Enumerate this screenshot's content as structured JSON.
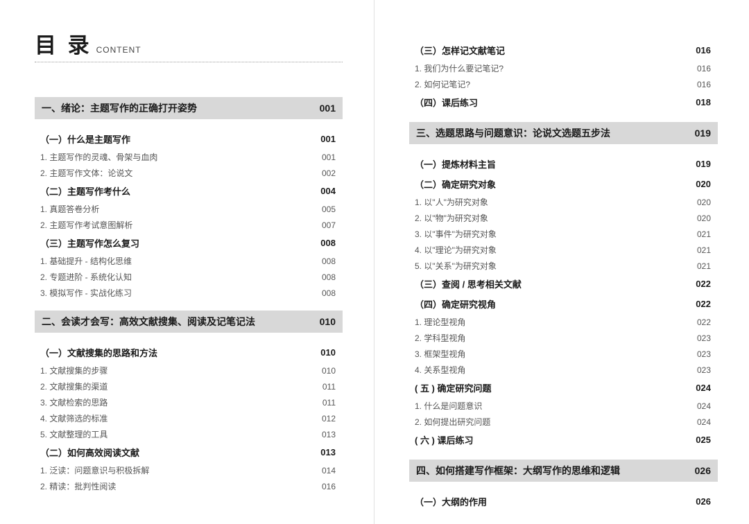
{
  "header": {
    "cn": "目 录",
    "en": "CONTENT"
  },
  "colors": {
    "chapter_bg": "#d8d8d8",
    "text_main": "#1a1a1a",
    "text_sub": "#555555",
    "divider": "#e0e0e0"
  },
  "left": {
    "ch1": {
      "title": "一、绪论：主题写作的正确打开姿势",
      "page": "001"
    },
    "s1_1": {
      "title": "（一）什么是主题写作",
      "page": "001"
    },
    "i1_1_1": {
      "title": "1. 主题写作的灵魂、骨架与血肉",
      "page": "001"
    },
    "i1_1_2": {
      "title": "2. 主题写作文体：论说文",
      "page": "002"
    },
    "s1_2": {
      "title": "（二）主题写作考什么",
      "page": "004"
    },
    "i1_2_1": {
      "title": "1. 真题答卷分析",
      "page": "005"
    },
    "i1_2_2": {
      "title": "2. 主题写作考试意图解析",
      "page": "007"
    },
    "s1_3": {
      "title": "（三）主题写作怎么复习",
      "page": "008"
    },
    "i1_3_1": {
      "title": "1. 基础提升 - 结构化思维",
      "page": "008"
    },
    "i1_3_2": {
      "title": "2. 专题进阶 - 系统化认知",
      "page": "008"
    },
    "i1_3_3": {
      "title": "3. 模拟写作 - 实战化练习",
      "page": "008"
    },
    "ch2": {
      "title": "二、会读才会写：高效文献搜集、阅读及记笔记法",
      "page": "010"
    },
    "s2_1": {
      "title": "（一）文献搜集的思路和方法",
      "page": "010"
    },
    "i2_1_1": {
      "title": "1. 文献搜集的步骤",
      "page": "010"
    },
    "i2_1_2": {
      "title": "2. 文献搜集的渠道",
      "page": "011"
    },
    "i2_1_3": {
      "title": "3. 文献检索的思路",
      "page": "011"
    },
    "i2_1_4": {
      "title": "4. 文献筛选的标准",
      "page": "012"
    },
    "i2_1_5": {
      "title": "5. 文献整理的工具",
      "page": "013"
    },
    "s2_2": {
      "title": "（二）如何高效阅读文献",
      "page": "013"
    },
    "i2_2_1": {
      "title": "1. 泛读：问题意识与积极拆解",
      "page": "014"
    },
    "i2_2_2": {
      "title": "2. 精读：批判性阅读",
      "page": "016"
    }
  },
  "right": {
    "s2_3": {
      "title": "（三）怎样记文献笔记",
      "page": "016"
    },
    "i2_3_1": {
      "title": "1. 我们为什么要记笔记?",
      "page": "016"
    },
    "i2_3_2": {
      "title": "2. 如何记笔记?",
      "page": "016"
    },
    "s2_4": {
      "title": "（四）课后练习",
      "page": "018"
    },
    "ch3": {
      "title": "三、选题思路与问题意识：论说文选题五步法",
      "page": "019"
    },
    "s3_1": {
      "title": "（一）提炼材料主旨",
      "page": "019"
    },
    "s3_2": {
      "title": "（二）确定研究对象",
      "page": "020"
    },
    "i3_2_1": {
      "title": "1. 以\"人\"为研究对象",
      "page": "020"
    },
    "i3_2_2": {
      "title": "2. 以\"物\"为研究对象",
      "page": "020"
    },
    "i3_2_3": {
      "title": "3. 以\"事件\"为研究对象",
      "page": "021"
    },
    "i3_2_4": {
      "title": "4. 以\"理论\"为研究对象",
      "page": "021"
    },
    "i3_2_5": {
      "title": "5. 以\"关系\"为研究对象",
      "page": "021"
    },
    "s3_3": {
      "title": "（三）查阅 / 思考相关文献",
      "page": "022"
    },
    "s3_4": {
      "title": "（四）确定研究视角",
      "page": "022"
    },
    "i3_4_1": {
      "title": "1. 理论型视角",
      "page": "022"
    },
    "i3_4_2": {
      "title": "2. 学科型视角",
      "page": "023"
    },
    "i3_4_3": {
      "title": "3. 框架型视角",
      "page": "023"
    },
    "i3_4_4": {
      "title": "4. 关系型视角",
      "page": "023"
    },
    "s3_5": {
      "title": "( 五 ) 确定研究问题",
      "page": "024"
    },
    "i3_5_1": {
      "title": "1. 什么是问题意识",
      "page": "024"
    },
    "i3_5_2": {
      "title": "2. 如何提出研究问题",
      "page": "024"
    },
    "s3_6": {
      "title": "( 六 ) 课后练习",
      "page": "025"
    },
    "ch4": {
      "title": "四、如何搭建写作框架：大纲写作的思维和逻辑",
      "page": "026"
    },
    "s4_1": {
      "title": "（一）大纲的作用",
      "page": "026"
    }
  }
}
